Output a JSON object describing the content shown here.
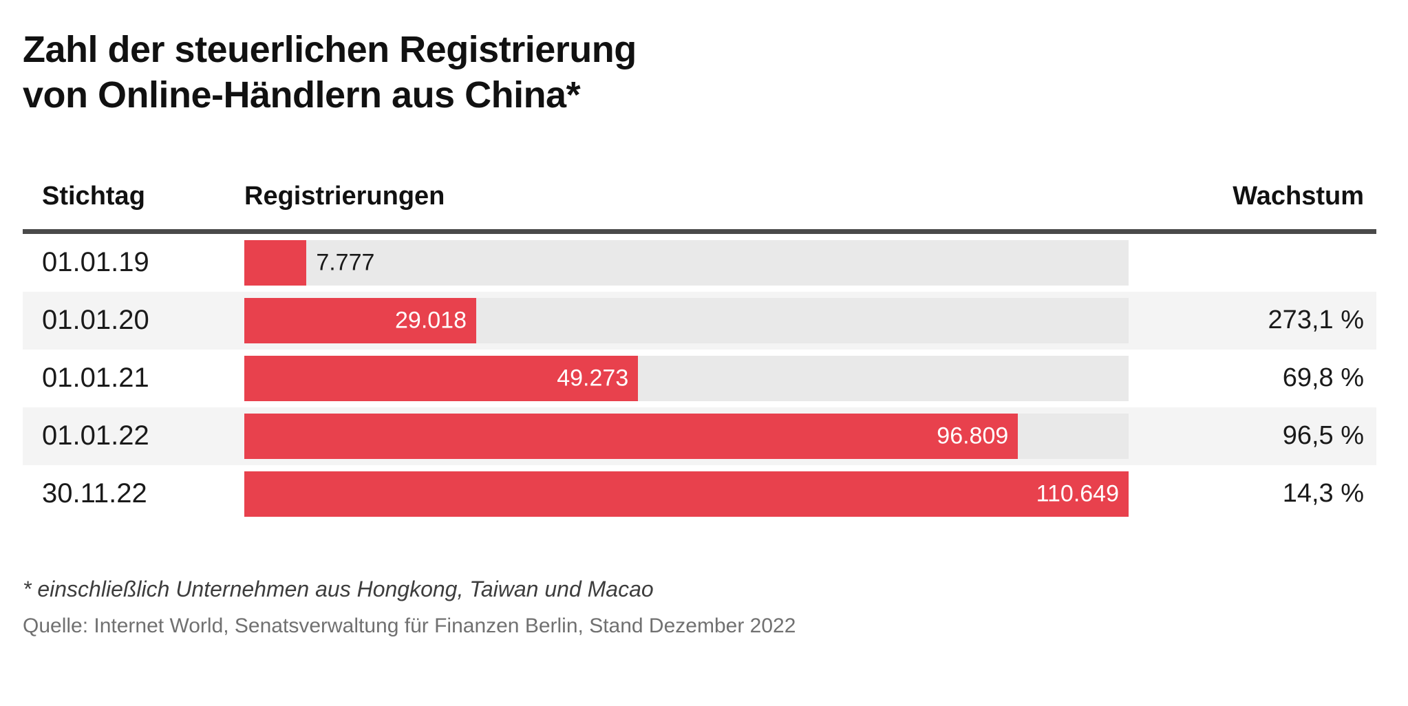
{
  "title": {
    "line1": "Zahl der steuerlichen Registrierung",
    "line2": "von Online-Händlern aus China*"
  },
  "table": {
    "headers": {
      "date": "Stichtag",
      "registrations": "Registrierungen",
      "growth": "Wachstum"
    },
    "max_value": 110649,
    "rows": [
      {
        "date": "01.01.19",
        "value": 7777,
        "value_label": "7.777",
        "growth": "",
        "label_inside": false
      },
      {
        "date": "01.01.20",
        "value": 29018,
        "value_label": "29.018",
        "growth": "273,1 %",
        "label_inside": true
      },
      {
        "date": "01.01.21",
        "value": 49273,
        "value_label": "49.273",
        "growth": "69,8 %",
        "label_inside": true
      },
      {
        "date": "01.01.22",
        "value": 96809,
        "value_label": "96.809",
        "growth": "96,5 %",
        "label_inside": true
      },
      {
        "date": "30.11.22",
        "value": 110649,
        "value_label": "110.649",
        "growth": "14,3 %",
        "label_inside": true
      }
    ]
  },
  "footnote": "* einschließlich Unternehmen aus Hongkong, Taiwan und Macao",
  "source": "Quelle: Internet World, Senatsverwaltung für Finanzen Berlin, Stand Dezember 2022",
  "colors": {
    "bar": "#e8414d",
    "bar_track": "#e9e9e9",
    "row_alt_background": "#f4f4f4",
    "header_rule": "#4a4a4a"
  },
  "chart_data": {
    "type": "bar",
    "orientation": "horizontal",
    "title": "Zahl der steuerlichen Registrierung von Online-Händlern aus China*",
    "categories": [
      "01.01.19",
      "01.01.20",
      "01.01.21",
      "01.01.22",
      "30.11.22"
    ],
    "series": [
      {
        "name": "Registrierungen",
        "values": [
          7777,
          29018,
          49273,
          96809,
          110649
        ]
      },
      {
        "name": "Wachstum (%)",
        "values": [
          null,
          273.1,
          69.8,
          96.5,
          14.3
        ]
      }
    ],
    "xlabel": "Registrierungen",
    "ylabel": "Stichtag",
    "xlim": [
      0,
      110649
    ],
    "grid": false,
    "legend_position": "none",
    "annotations": [
      "* einschließlich Unternehmen aus Hongkong, Taiwan und Macao",
      "Quelle: Internet World, Senatsverwaltung für Finanzen Berlin, Stand Dezember 2022"
    ]
  }
}
